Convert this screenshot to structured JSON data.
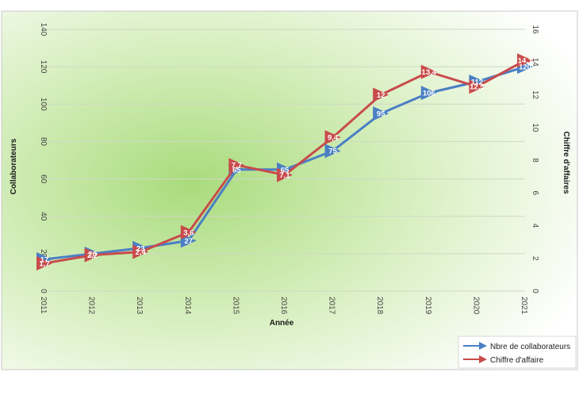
{
  "chart_data": {
    "type": "line",
    "title": "",
    "xlabel": "Année",
    "ylabel_left": "Collaborateurs",
    "ylabel_right": "Chiffre d'affaires",
    "categories": [
      "2011",
      "2012",
      "2013",
      "2014",
      "2015",
      "2016",
      "2017",
      "2018",
      "2019",
      "2020",
      "2021"
    ],
    "y_left": {
      "lim": [
        0,
        140
      ],
      "ticks": [
        "0",
        "20",
        "40",
        "60",
        "80",
        "100",
        "120",
        "140"
      ]
    },
    "y_right": {
      "lim": [
        0,
        16
      ],
      "ticks": [
        "0",
        "2",
        "4",
        "6",
        "8",
        "10",
        "12",
        "14",
        "16"
      ]
    },
    "grid": "horizontal",
    "legend_position": "bottom-right",
    "series": [
      {
        "name": "Nbre de collaborateurs",
        "axis": "left",
        "color": "#4a7fc4",
        "values": [
          17,
          20,
          23,
          27,
          65,
          65,
          75,
          95,
          106,
          112,
          120
        ],
        "labels": [
          "17",
          "20",
          "23",
          "27",
          "65",
          "65",
          "75",
          "95",
          "106",
          "112",
          "120"
        ]
      },
      {
        "name": "Chiffre d'affaire",
        "axis": "right",
        "color": "#c84b4b",
        "values": [
          1.7,
          2.2,
          2.4,
          3.6,
          7.7,
          7.1,
          9.4,
          12.0,
          13.4,
          12.5,
          14.1
        ],
        "labels": [
          "1,7",
          "2,2",
          "2,4",
          "3,6",
          "7,7",
          "7,1",
          "9,4",
          "12",
          "13,4",
          "12,5",
          "14,1"
        ]
      }
    ]
  }
}
